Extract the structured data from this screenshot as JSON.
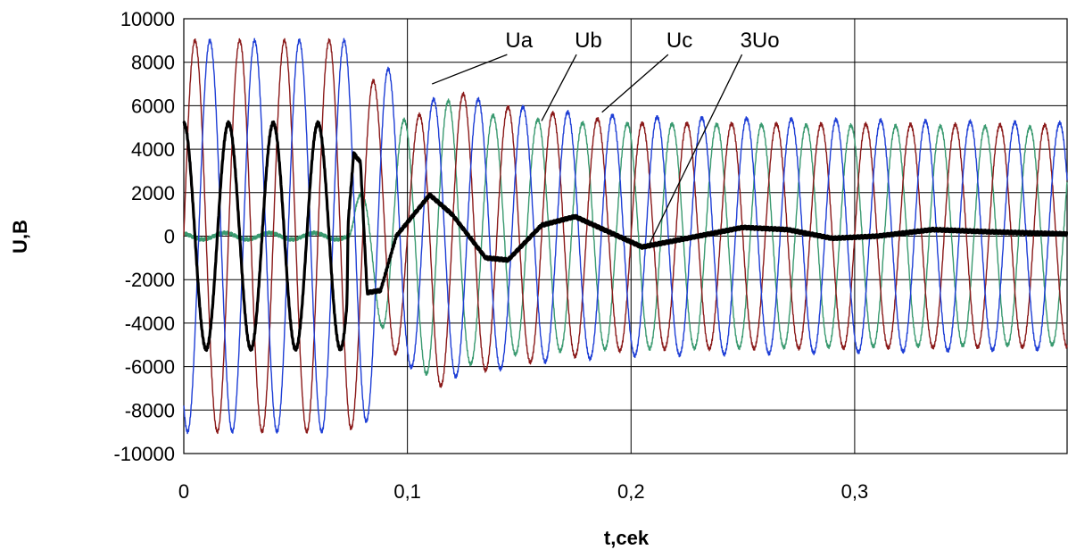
{
  "chart_data": {
    "type": "line",
    "title": "",
    "xlabel": "t,cek",
    "ylabel": "U,B",
    "xlim": [
      0,
      0.395
    ],
    "ylim": [
      -10000,
      10000
    ],
    "x_ticks": [
      {
        "value": 0,
        "label": "0"
      },
      {
        "value": 0.1,
        "label": "0,1"
      },
      {
        "value": 0.2,
        "label": "0,2"
      },
      {
        "value": 0.3,
        "label": "0,3"
      }
    ],
    "y_ticks": [
      {
        "value": 10000,
        "label": "10000"
      },
      {
        "value": 8000,
        "label": "8000"
      },
      {
        "value": 6000,
        "label": "6000"
      },
      {
        "value": 4000,
        "label": "4000"
      },
      {
        "value": 2000,
        "label": "2000"
      },
      {
        "value": 0,
        "label": "0"
      },
      {
        "value": -2000,
        "label": "-2000"
      },
      {
        "value": -4000,
        "label": "-4000"
      },
      {
        "value": -6000,
        "label": "-6000"
      },
      {
        "value": -8000,
        "label": "-8000"
      },
      {
        "value": -10000,
        "label": "-10000"
      }
    ],
    "grid": true,
    "legend": "none",
    "series": [
      {
        "name": "Ua",
        "color": "#8b1a1a",
        "frequency_hz": 50,
        "phase_deg": 0,
        "envelope": {
          "t": [
            0,
            0.074,
            0.08,
            0.1,
            0.112,
            0.14,
            0.2,
            0.395
          ],
          "amp": [
            9000,
            9000,
            8000,
            4500,
            7000,
            6000,
            5200,
            5100
          ]
        },
        "offset": {
          "t": [
            0,
            0.074,
            0.395
          ],
          "value": [
            0,
            0,
            0
          ]
        }
      },
      {
        "name": "Ub",
        "color": "#1f3fd6",
        "frequency_hz": 50,
        "phase_deg": -120,
        "envelope": {
          "t": [
            0,
            0.074,
            0.09,
            0.1,
            0.12,
            0.16,
            0.2,
            0.395
          ],
          "amp": [
            9000,
            9000,
            8000,
            6000,
            6500,
            5800,
            5500,
            5200
          ]
        },
        "offset": {
          "t": [
            0,
            0.074,
            0.395
          ],
          "value": [
            0,
            0,
            0
          ]
        }
      },
      {
        "name": "Uc",
        "color": "#3a9a70",
        "frequency_hz": 50,
        "phase_deg": 120,
        "envelope": {
          "t": [
            0,
            0.074,
            0.077,
            0.09,
            0.11,
            0.14,
            0.18,
            0.395
          ],
          "amp": [
            150,
            150,
            1500,
            4500,
            6500,
            5500,
            5200,
            5000
          ]
        },
        "offset": {
          "t": [
            0,
            0.074,
            0.395
          ],
          "value": [
            0,
            0,
            0
          ]
        }
      },
      {
        "name": "3Uo",
        "color": "#000000",
        "frequency_hz": 50,
        "phase_deg": 90,
        "envelope": {
          "t": [
            0,
            0.073,
            0.0735,
            0.395
          ],
          "amp": [
            5200,
            5200,
            0,
            0
          ]
        },
        "offset": {
          "t": [
            0,
            0.073,
            0.076,
            0.079,
            0.082,
            0.088,
            0.095,
            0.11,
            0.12,
            0.135,
            0.145,
            0.16,
            0.175,
            0.19,
            0.205,
            0.23,
            0.25,
            0.27,
            0.29,
            0.31,
            0.335,
            0.36,
            0.395
          ],
          "value": [
            0,
            0,
            3800,
            3400,
            -2600,
            -2500,
            0,
            1900,
            1000,
            -1000,
            -1100,
            500,
            900,
            200,
            -500,
            0,
            400,
            300,
            -100,
            0,
            300,
            200,
            100
          ]
        }
      }
    ],
    "annotations": [
      {
        "text": "Ua",
        "x": 0.143,
        "y": 8600,
        "point_x": 0.111,
        "point_y": 7000
      },
      {
        "text": "Ub",
        "x": 0.174,
        "y": 8600,
        "point_x": 0.16,
        "point_y": 5300
      },
      {
        "text": "Uc",
        "x": 0.215,
        "y": 8600,
        "point_x": 0.187,
        "point_y": 5700
      },
      {
        "text": "3Uo",
        "x": 0.248,
        "y": 8600,
        "point_x": 0.208,
        "point_y": -400
      }
    ]
  }
}
